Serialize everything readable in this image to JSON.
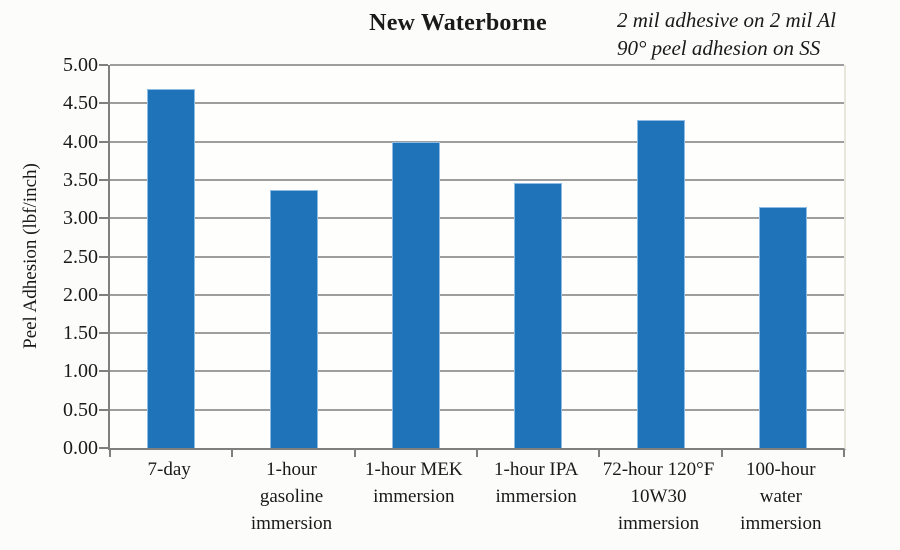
{
  "title": "New Waterborne",
  "annotation": {
    "line1": "2 mil adhesive on 2 mil Al",
    "line2": "90° peel adhesion on SS"
  },
  "chart_data": {
    "type": "bar",
    "title": "New Waterborne",
    "categories": [
      "7-day",
      "1-hour gasoline immersion",
      "1-hour MEK immersion",
      "1-hour IPA immersion",
      "72-hour 120°F 10W30 immersion",
      "100-hour water immersion"
    ],
    "category_lines": [
      [
        "7-day"
      ],
      [
        "1-hour",
        "gasoline",
        "immersion"
      ],
      [
        "1-hour MEK",
        "immersion"
      ],
      [
        "1-hour IPA",
        "immersion"
      ],
      [
        "72-hour 120°F",
        "10W30",
        "immersion"
      ],
      [
        "100-hour",
        "water",
        "immersion"
      ]
    ],
    "values": [
      4.69,
      3.37,
      4.0,
      3.46,
      4.28,
      3.14
    ],
    "xlabel": "",
    "ylabel": "Peel Adhesion (lbf/inch)",
    "ylim": [
      0,
      5
    ],
    "ytick_step": 0.5,
    "ytick_labels": [
      "0.00",
      "0.50",
      "1.00",
      "1.50",
      "2.00",
      "2.50",
      "3.00",
      "3.50",
      "4.00",
      "4.50",
      "5.00"
    ],
    "grid": true,
    "legend": "none",
    "colors": {
      "bar_fill": "#1f73b9",
      "bar_border": "#8fbce4",
      "gridline": "#9e9e9e",
      "axis": "#7f7f7f",
      "plot_edge": "#e9e7dc",
      "text": "#1a1a1a"
    }
  }
}
